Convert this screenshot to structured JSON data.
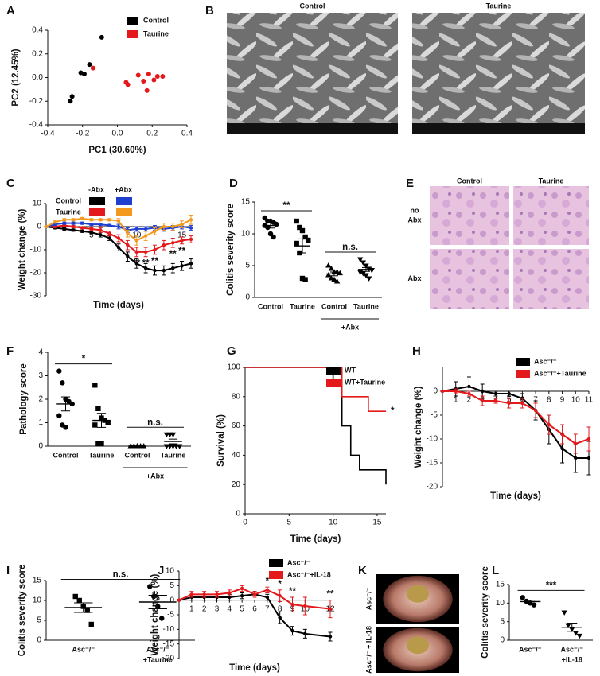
{
  "chart_data": [
    {
      "panel": "A",
      "type": "scatter",
      "xlabel": "PC1 (30.60%)",
      "ylabel": "PC2 (12.45%)",
      "xlim": [
        -0.4,
        0.4
      ],
      "ylim": [
        -0.4,
        0.4
      ],
      "xticks": [
        -0.4,
        -0.2,
        {
          "value": 0,
          "label": "0.0"
        },
        0.2,
        0.4
      ],
      "yticks": [
        -0.4,
        -0.2,
        {
          "value": 0,
          "label": "0.0"
        },
        0.2,
        0.4
      ],
      "series": [
        {
          "name": "Control",
          "color": "#000000",
          "x": [
            -0.27,
            -0.26,
            -0.21,
            -0.19,
            -0.16,
            -0.09
          ],
          "values": [
            -0.2,
            -0.16,
            0.04,
            0.03,
            0.11,
            0.34
          ]
        },
        {
          "name": "Taurine",
          "color": "#e3191c",
          "x": [
            -0.14,
            0.05,
            0.06,
            0.12,
            0.15,
            0.17,
            0.18,
            0.21,
            0.23,
            0.26
          ],
          "values": [
            0.08,
            -0.04,
            -0.06,
            0.02,
            -0.03,
            -0.11,
            0.03,
            -0.02,
            0.01,
            0.01
          ]
        }
      ]
    },
    {
      "panel": "C",
      "type": "line",
      "xlabel": "Time (days)",
      "ylabel": "Weight change (%)",
      "xlim": [
        0,
        16
      ],
      "ylim": [
        -30,
        10
      ],
      "xticks": [
        5,
        10,
        15
      ],
      "yticks": [
        10,
        0,
        -10,
        -20,
        -30
      ],
      "legend": {
        "columns": [
          "-Abx",
          "+Abx"
        ],
        "rows": [
          "Control",
          "Taurine"
        ]
      },
      "x": [
        0,
        1,
        2,
        3,
        4,
        5,
        6,
        7,
        8,
        9,
        10,
        11,
        12,
        13,
        14,
        15,
        16
      ],
      "series": [
        {
          "color": "#000000",
          "values": [
            0,
            -0.5,
            -1,
            -1.5,
            -2,
            -2.5,
            -3.5,
            -5,
            -9,
            -13,
            -16,
            -18,
            -19,
            -19,
            -18,
            -17,
            -16
          ],
          "errors": [
            0,
            0.5,
            0.5,
            0.5,
            0.5,
            0.5,
            1,
            1,
            1.5,
            2,
            2,
            2,
            2,
            2,
            2,
            2,
            2
          ]
        },
        {
          "color": "#e3191c",
          "values": [
            0,
            0,
            0.5,
            0,
            -0.5,
            -1,
            -1.5,
            -3,
            -5,
            -8,
            -11,
            -11,
            -10,
            -8,
            -7,
            -6,
            -5.5
          ],
          "errors": [
            0,
            0.5,
            0.5,
            0.5,
            0.5,
            0.5,
            1,
            1,
            1.5,
            2,
            2,
            2,
            2,
            2,
            2,
            1.5,
            1.5
          ]
        },
        {
          "color": "#1f3fd0",
          "values": [
            0,
            1,
            1.5,
            1.5,
            1.5,
            1,
            1,
            0.5,
            0,
            -1.5,
            -1,
            -1,
            -0.5,
            -1,
            -0.5,
            0,
            -0.5
          ],
          "errors": [
            0,
            0.5,
            0.5,
            0.5,
            0.5,
            0.5,
            0.5,
            0.5,
            1,
            1,
            1,
            1,
            1,
            1,
            1,
            1,
            1
          ]
        },
        {
          "color": "#f39a1e",
          "values": [
            0,
            2,
            3,
            3,
            3.5,
            3,
            3,
            3,
            2.5,
            -3,
            -6,
            -4,
            -2,
            0,
            0,
            1,
            3
          ],
          "errors": [
            0,
            0.5,
            0.5,
            0.5,
            0.5,
            0.5,
            0.5,
            0.5,
            1,
            1.5,
            2,
            2,
            1.5,
            1.5,
            1.5,
            1.5,
            2
          ]
        }
      ],
      "significance": [
        null,
        null,
        null,
        null,
        null,
        null,
        null,
        null,
        null,
        "*",
        "**",
        "**",
        "**",
        null,
        "**",
        "**",
        null
      ]
    },
    {
      "panel": "D",
      "type": "dotplot",
      "ylabel": "Colitis severity score",
      "ylim": [
        0,
        15
      ],
      "yticks": [
        0,
        5,
        10,
        15
      ],
      "color": "#000000",
      "groups": [
        {
          "label": [
            "Control"
          ],
          "marker": "circle",
          "values": [
            12.5,
            12,
            12,
            11.8,
            11.5,
            11.3,
            11,
            10,
            9.5
          ],
          "mean": 11.3,
          "sem": 0.4
        },
        {
          "label": [
            "Taurine"
          ],
          "marker": "square",
          "values": [
            12,
            11,
            10.5,
            9.5,
            9,
            8.5,
            7,
            3,
            2.8
          ],
          "mean": 8.1,
          "sem": 1.1
        },
        {
          "label": [
            "Control"
          ],
          "marker": "triangle",
          "values": [
            5,
            4.5,
            4,
            4,
            3.8,
            3.5,
            3,
            2.8,
            2.5
          ],
          "mean": 3.7,
          "sem": 0.3
        },
        {
          "label": [
            "Taurine"
          ],
          "marker": "triangle-down",
          "values": [
            6,
            5.5,
            5,
            4.5,
            4.3,
            4,
            3.8,
            3.5,
            3
          ],
          "mean": 4.4,
          "sem": 0.3
        }
      ],
      "spans": [
        {
          "label": "+Abx",
          "groups": [
            2,
            3
          ]
        }
      ],
      "comparisons": [
        {
          "groups": [
            0,
            1
          ],
          "label": "**"
        },
        {
          "groups": [
            2,
            3
          ],
          "label": "n.s."
        }
      ]
    },
    {
      "panel": "F",
      "type": "dotplot",
      "ylabel": "Pathology score",
      "ylim": [
        0,
        4
      ],
      "yticks": [
        0,
        1,
        2,
        3,
        4
      ],
      "color": "#000000",
      "groups": [
        {
          "label": [
            "Control"
          ],
          "marker": "circle",
          "values": [
            3.2,
            2.7,
            2,
            1.9,
            1.8,
            1.3,
            0.9,
            0.8
          ],
          "mean": 1.8,
          "sem": 0.3
        },
        {
          "label": [
            "Taurine"
          ],
          "marker": "square",
          "values": [
            2.6,
            1.6,
            1.2,
            1.1,
            1,
            0.9,
            0.1,
            0.1
          ],
          "mean": 1.1,
          "sem": 0.3
        },
        {
          "label": [
            "Control"
          ],
          "marker": "triangle",
          "values": [
            0,
            0,
            0,
            0,
            0,
            0,
            0,
            0
          ],
          "mean": 0,
          "sem": 0
        },
        {
          "label": [
            "Taurine"
          ],
          "marker": "triangle-down",
          "values": [
            0.5,
            0.5,
            0.5,
            0,
            0,
            0,
            0,
            0
          ],
          "mean": 0.2,
          "sem": 0.1
        }
      ],
      "spans": [
        {
          "label": "+Abx",
          "groups": [
            2,
            3
          ]
        }
      ],
      "comparisons": [
        {
          "groups": [
            0,
            1
          ],
          "label": "*"
        },
        {
          "groups": [
            2,
            3
          ],
          "label": "n.s."
        }
      ]
    },
    {
      "panel": "G",
      "type": "step",
      "xlabel": "Time (days)",
      "ylabel": "Survival (%)",
      "xlim": [
        0,
        16
      ],
      "ylim": [
        0,
        100
      ],
      "xticks": [
        0,
        5,
        10,
        15
      ],
      "yticks": [
        0,
        20,
        40,
        60,
        80,
        100
      ],
      "series": [
        {
          "name": "WT",
          "color": "#000000",
          "x": [
            0,
            10,
            11,
            12,
            13,
            16
          ],
          "values": [
            100,
            90,
            60,
            40,
            30,
            20
          ]
        },
        {
          "name": "WT+Taurine",
          "color": "#e3191c",
          "x": [
            0,
            11,
            14,
            16
          ],
          "values": [
            100,
            80,
            70,
            70
          ]
        }
      ],
      "annotation": "*"
    },
    {
      "panel": "H",
      "type": "line",
      "xlabel": "Time (days)",
      "ylabel": "Weight change (%)",
      "xlim": [
        0,
        11
      ],
      "ylim": [
        -20,
        5
      ],
      "xticks": [
        1,
        2,
        3,
        4,
        5,
        6,
        7,
        8,
        9,
        10,
        11
      ],
      "yticks": [
        0,
        -5,
        -10,
        -15,
        -20
      ],
      "x": [
        0,
        1,
        2,
        3,
        4,
        5,
        6,
        7,
        8,
        9,
        10,
        11
      ],
      "series": [
        {
          "name": "Asc⁻/⁻",
          "color": "#000000",
          "values": [
            0,
            0.5,
            1,
            0,
            -0.5,
            -0.5,
            -1.5,
            -4,
            -8,
            -12,
            -14,
            -14
          ],
          "errors": [
            0,
            1.5,
            2,
            1.5,
            0.5,
            0.5,
            1,
            2,
            3,
            3,
            3,
            3.5
          ]
        },
        {
          "name": "Asc⁻/⁻+Taurine",
          "color": "#e3191c",
          "values": [
            0,
            0,
            -0.5,
            -2,
            -2,
            -2.5,
            -2.5,
            -4,
            -7,
            -9,
            -11,
            -10
          ],
          "errors": [
            0,
            0.5,
            0.5,
            1,
            0.5,
            1,
            1,
            1.5,
            2,
            2,
            2,
            2.5
          ]
        }
      ]
    },
    {
      "panel": "I",
      "type": "dotplot",
      "ylabel": "Colitis severity score",
      "ylim": [
        0,
        15
      ],
      "yticks": [
        0,
        5,
        10,
        15
      ],
      "color": "#000000",
      "groups": [
        {
          "label": [
            "Asc⁻/⁻"
          ],
          "marker": "square",
          "values": [
            11,
            10,
            8.5,
            7.5,
            4
          ],
          "mean": 8.2,
          "sem": 1.2
        },
        {
          "label": [
            "Asc⁻/⁻",
            "+Taurine"
          ],
          "marker": "circle",
          "values": [
            13.5,
            11,
            8.5,
            5.5
          ],
          "mean": 9.6,
          "sem": 1.7
        }
      ],
      "comparisons": [
        {
          "groups": [
            0,
            1
          ],
          "label": "n.s."
        }
      ]
    },
    {
      "panel": "J",
      "type": "line",
      "xlabel": "Time (days)",
      "ylabel": "Weight change (%)",
      "xlim": [
        0,
        12
      ],
      "ylim": [
        -20,
        10
      ],
      "xticks": [
        1,
        2,
        3,
        4,
        5,
        6,
        7,
        8,
        9,
        10,
        12
      ],
      "yticks": [
        10,
        5,
        0,
        -5,
        -10,
        -15,
        -20
      ],
      "x": [
        0,
        1,
        2,
        3,
        4,
        5,
        6,
        7,
        8,
        9,
        10,
        12
      ],
      "series": [
        {
          "name": "Asc⁻/⁻",
          "color": "#000000",
          "values": [
            0,
            1,
            1,
            1,
            1,
            1.5,
            2,
            1,
            -6,
            -10.5,
            -11.5,
            -12.5
          ],
          "errors": [
            0,
            1,
            1,
            1,
            1,
            1,
            1,
            1,
            2,
            1.5,
            1.5,
            1.5
          ]
        },
        {
          "name": "Asc⁻/⁻+IL-18",
          "color": "#e3191c",
          "values": [
            0,
            2,
            2,
            2,
            2.5,
            4,
            2,
            3.5,
            1.5,
            -1.5,
            -2,
            -3
          ],
          "errors": [
            0,
            1,
            1,
            1,
            1,
            1,
            1,
            1,
            2,
            2.5,
            3,
            3
          ]
        }
      ],
      "significance": [
        null,
        null,
        null,
        null,
        null,
        null,
        null,
        "*",
        "*",
        "**",
        null,
        "**"
      ]
    },
    {
      "panel": "L",
      "type": "dotplot",
      "ylabel": "Colitis severity score",
      "ylim": [
        0,
        15
      ],
      "yticks": [
        0,
        5,
        10,
        15
      ],
      "color": "#000000",
      "groups": [
        {
          "label": [
            "Asc⁻/⁻"
          ],
          "marker": "circle",
          "values": [
            11.5,
            10.5,
            10,
            9.5
          ],
          "mean": 10.4,
          "sem": 0.4
        },
        {
          "label": [
            "Asc⁻/⁻",
            "+IL-18"
          ],
          "marker": "triangle-down",
          "values": [
            7.5,
            4,
            3,
            2,
            1.2
          ],
          "mean": 3.5,
          "sem": 1.1
        }
      ],
      "comparisons": [
        {
          "groups": [
            0,
            1
          ],
          "label": "***"
        }
      ]
    }
  ],
  "images": [
    {
      "panel": "B",
      "columns": [
        "Control",
        "Taurine"
      ]
    },
    {
      "panel": "E",
      "columns": [
        "Control",
        "Taurine"
      ],
      "rows": [
        [
          "no",
          "Abx"
        ],
        [
          "Abx"
        ]
      ]
    },
    {
      "panel": "K",
      "rows": [
        "Asc⁻/⁻",
        "Asc⁻/⁻ + IL-18"
      ]
    }
  ]
}
